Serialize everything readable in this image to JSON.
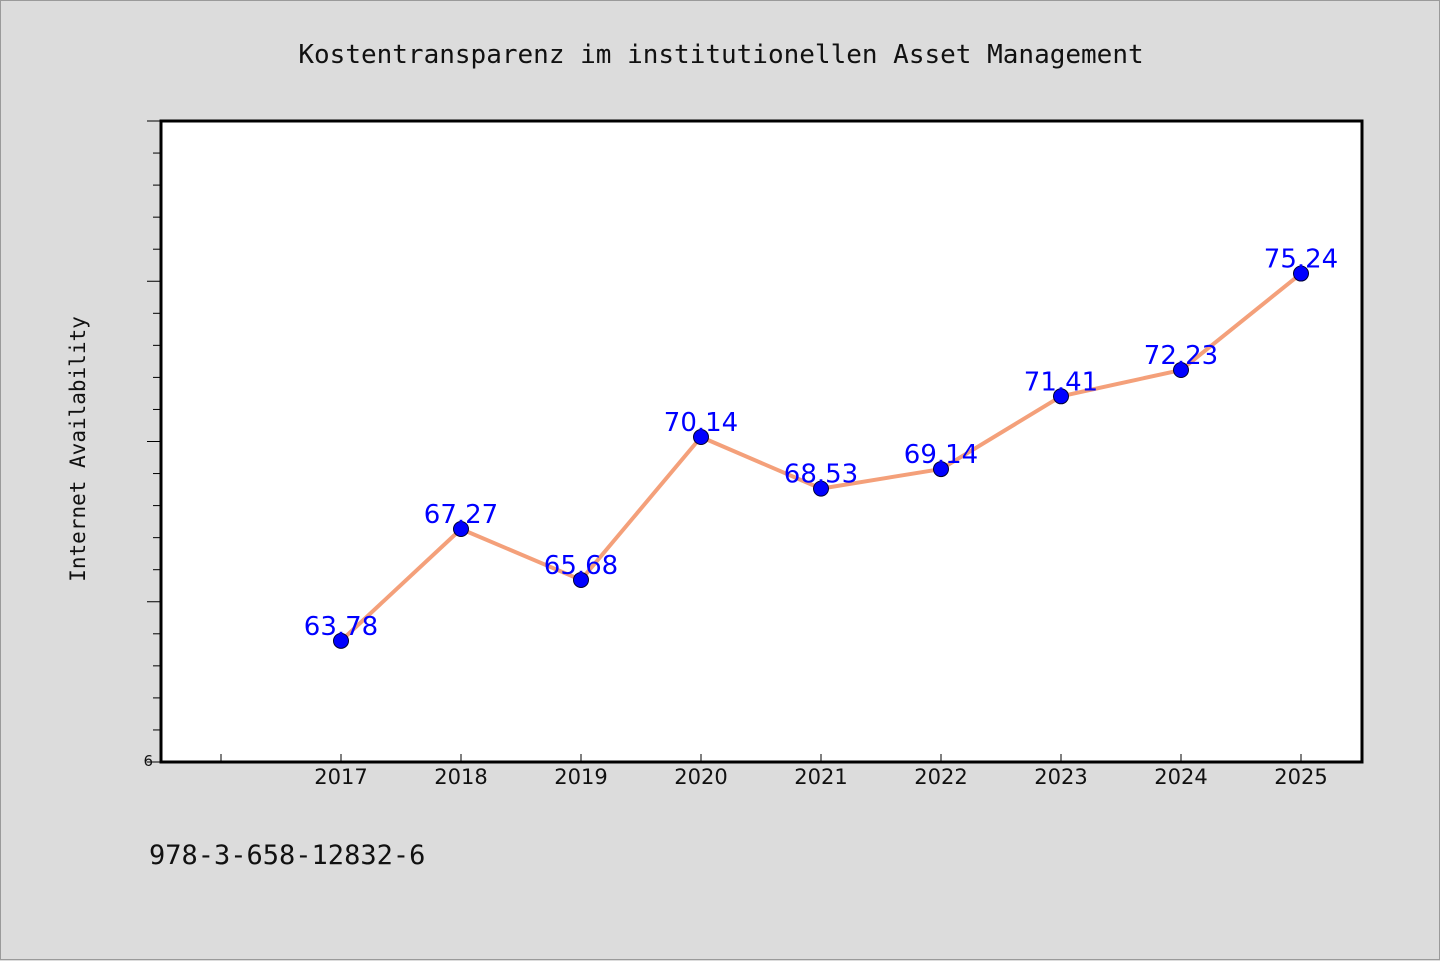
{
  "chart_data": {
    "type": "line",
    "title": "Kostentransparenz im institutionellen Asset Management",
    "xlabel": "",
    "ylabel": "Internet Availability",
    "categories": [
      "2017",
      "2018",
      "2019",
      "2020",
      "2021",
      "2022",
      "2023",
      "2024",
      "2025"
    ],
    "series": [
      {
        "values": [
          63.78,
          67.27,
          65.68,
          70.14,
          68.53,
          69.14,
          71.41,
          72.23,
          75.24
        ]
      }
    ],
    "data_labels": [
      "63.78",
      "67.27",
      "65.68",
      "70.14",
      "68.53",
      "69.14",
      "71.41",
      "72.23",
      "75.24"
    ],
    "ylim": [
      60,
      80
    ],
    "y_tick_labels": [
      "6"
    ],
    "grid": false,
    "legend": "none",
    "colors": {
      "line": "#f4a07a",
      "marker": "#0000ff",
      "label": "#0000ff",
      "background": "#dcdcdc",
      "plot_background": "#ffffff"
    }
  },
  "footer": {
    "text": "978-3-658-12832-6"
  }
}
